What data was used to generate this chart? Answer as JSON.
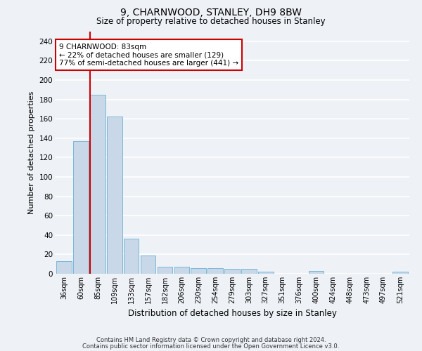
{
  "title1": "9, CHARNWOOD, STANLEY, DH9 8BW",
  "title2": "Size of property relative to detached houses in Stanley",
  "xlabel": "Distribution of detached houses by size in Stanley",
  "ylabel": "Number of detached properties",
  "bins": [
    "36sqm",
    "60sqm",
    "85sqm",
    "109sqm",
    "133sqm",
    "157sqm",
    "182sqm",
    "206sqm",
    "230sqm",
    "254sqm",
    "279sqm",
    "303sqm",
    "327sqm",
    "351sqm",
    "376sqm",
    "400sqm",
    "424sqm",
    "448sqm",
    "473sqm",
    "497sqm",
    "521sqm"
  ],
  "values": [
    13,
    137,
    185,
    162,
    36,
    19,
    7,
    7,
    6,
    6,
    5,
    5,
    2,
    0,
    0,
    3,
    0,
    0,
    0,
    0,
    2
  ],
  "bar_color": "#c8d8e8",
  "bar_edge_color": "#7ab8d8",
  "vline_color": "#cc0000",
  "annotation_text": "9 CHARNWOOD: 83sqm\n← 22% of detached houses are smaller (129)\n77% of semi-detached houses are larger (441) →",
  "annotation_box_color": "#ffffff",
  "annotation_box_edge_color": "#cc0000",
  "ylim": [
    0,
    250
  ],
  "yticks": [
    0,
    20,
    40,
    60,
    80,
    100,
    120,
    140,
    160,
    180,
    200,
    220,
    240
  ],
  "bg_color": "#eef2f7",
  "grid_color": "#ffffff",
  "footer1": "Contains HM Land Registry data © Crown copyright and database right 2024.",
  "footer2": "Contains public sector information licensed under the Open Government Licence v3.0."
}
